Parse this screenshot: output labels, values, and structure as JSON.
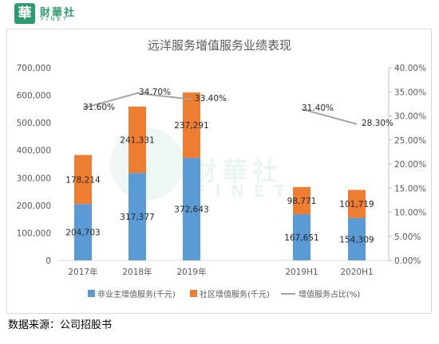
{
  "logo": {
    "mark": "華",
    "name_cn": "財華社",
    "name_en": "FINET"
  },
  "watermark": {
    "cn": "財華社",
    "en": "FINET"
  },
  "source": "数据来源：公司招股书",
  "colors": {
    "blue": "#5b9bd5",
    "orange": "#ed7d31",
    "line": "#a5a5a5",
    "brand": "#2e9a6e"
  },
  "chart_data": {
    "type": "bar",
    "title": "远洋服务增值服务业绩表现",
    "categories": [
      "2017年",
      "2018年",
      "2019年",
      "2019H1",
      "2020H1"
    ],
    "stacked": true,
    "series": [
      {
        "name": "非业主增值服务(千元)",
        "type": "bar",
        "axis": "left",
        "color": "#5b9bd5",
        "values": [
          204703,
          317377,
          372643,
          167651,
          154309
        ],
        "labels": [
          "204,703",
          "317,377",
          "372,643",
          "167,651",
          "154,309"
        ]
      },
      {
        "name": "社区增值服务(千元)",
        "type": "bar",
        "axis": "left",
        "color": "#ed7d31",
        "values": [
          178214,
          241331,
          237291,
          98771,
          101719
        ],
        "labels": [
          "178,214",
          "241,331",
          "237,291",
          "98,771",
          "101,719"
        ]
      },
      {
        "name": "增值服务占比(%)",
        "type": "line",
        "axis": "right",
        "color": "#a5a5a5",
        "values": [
          31.6,
          34.7,
          33.4,
          31.4,
          28.3
        ],
        "labels": [
          "31.60%",
          "34.70%",
          "33.40%",
          "31.40%",
          "28.30%"
        ],
        "segments": [
          [
            0,
            2
          ],
          [
            3,
            4
          ]
        ]
      }
    ],
    "y_left": {
      "min": 0,
      "max": 700000,
      "ticks": [
        "0",
        "100,000",
        "200,000",
        "300,000",
        "400,000",
        "500,000",
        "600,000",
        "700,000"
      ]
    },
    "y_right": {
      "min": 0,
      "max": 40,
      "ticks": [
        "0.00%",
        "5.00%",
        "10.00%",
        "15.00%",
        "20.00%",
        "25.00%",
        "30.00%",
        "35.00%",
        "40.00%"
      ]
    },
    "grid": false,
    "legend_position": "bottom"
  }
}
